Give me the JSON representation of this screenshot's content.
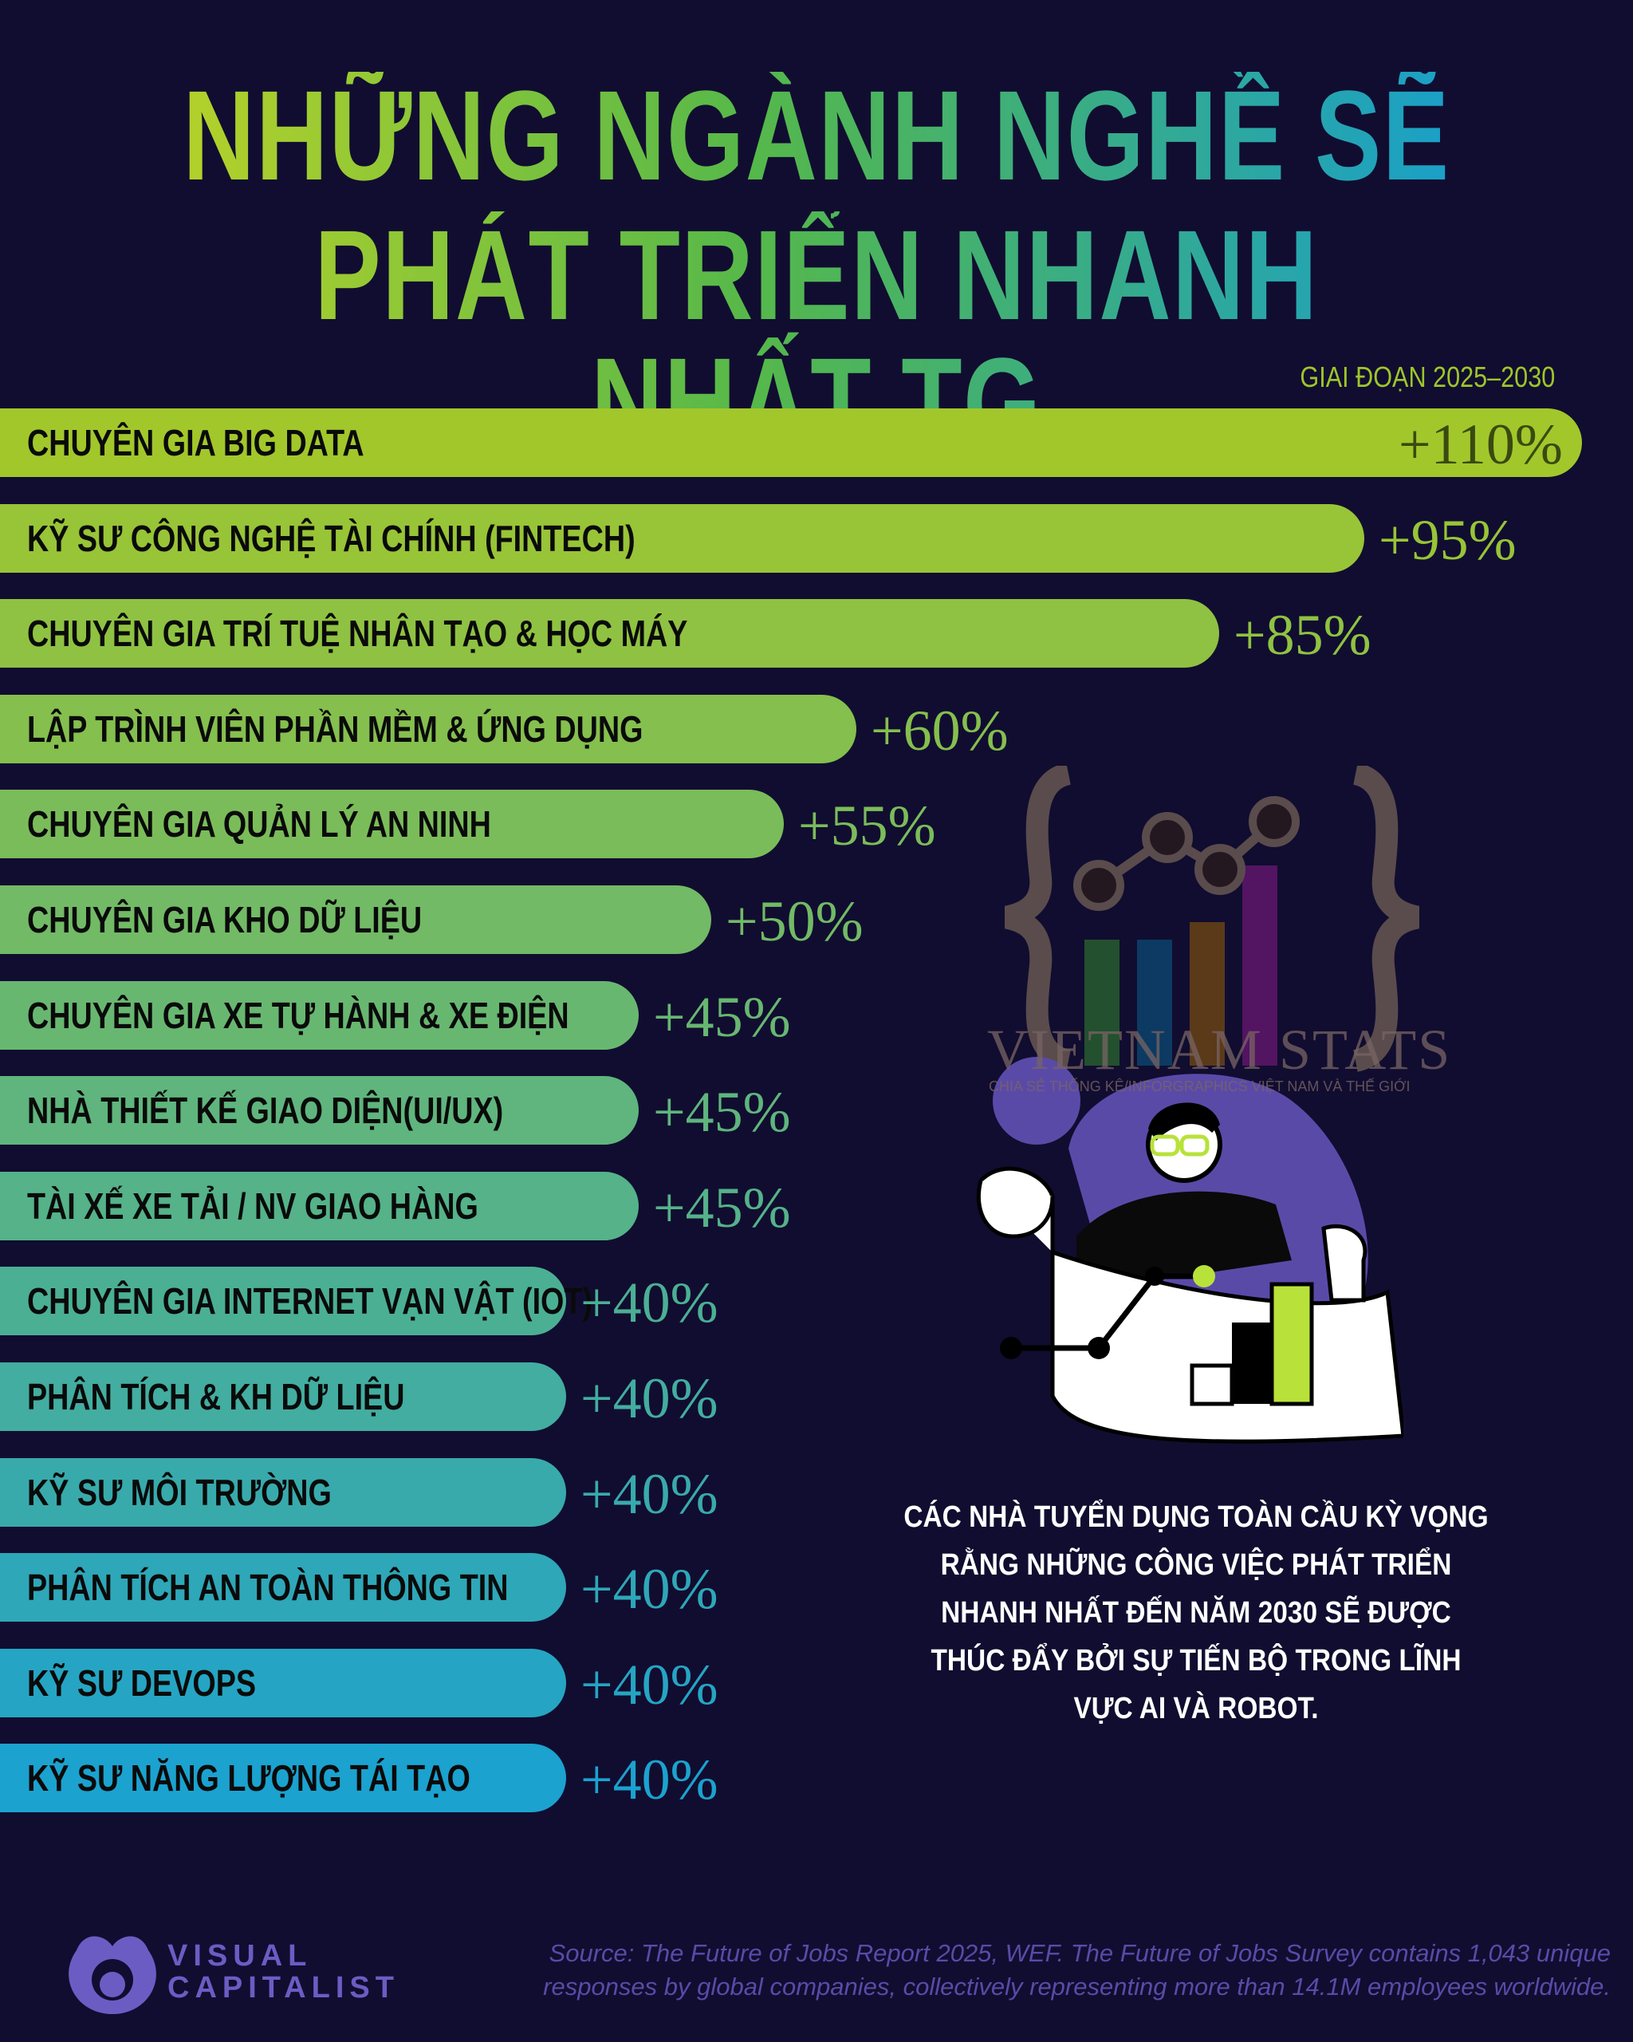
{
  "title": {
    "line1": "NHỮNG NGÀNH NGHỀ SẼ",
    "line2": "PHÁT TRIỂN NHANH NHẤT TG"
  },
  "period": "GIAI ĐOẠN 2025–2030",
  "chart_data": {
    "type": "bar",
    "orientation": "horizontal",
    "title": "NHỮNG NGÀNH NGHỀ SẼ PHÁT TRIỂN NHANH NHẤT TG",
    "subtitle": "GIAI ĐOẠN 2025–2030",
    "categories": [
      "CHUYÊN GIA BIG DATA",
      "KỸ SƯ CÔNG NGHỆ TÀI CHÍNH (FINTECH)",
      "CHUYÊN GIA TRÍ TUỆ NHÂN TẠO & HỌC MÁY",
      "LẬP TRÌNH VIÊN PHẦN MỀM & ỨNG DỤNG",
      "CHUYÊN GIA QUẢN LÝ AN NINH",
      "CHUYÊN GIA KHO DỮ LIỆU",
      "CHUYÊN GIA XE TỰ HÀNH & XE ĐIỆN",
      "NHÀ THIẾT KẾ GIAO DIỆN(UI/UX)",
      "TÀI XẾ XE TẢI / NV GIAO HÀNG",
      "CHUYÊN GIA INTERNET VẠN VẬT (IOT)",
      "PHÂN TÍCH & KH DỮ LIỆU",
      "KỸ SƯ MÔI TRƯỜNG",
      "PHÂN TÍCH AN TOÀN THÔNG TIN",
      "KỸ SƯ DEVOPS",
      "KỸ SƯ NĂNG LƯỢNG TÁI TẠO"
    ],
    "values": [
      110,
      95,
      85,
      60,
      55,
      50,
      45,
      45,
      45,
      40,
      40,
      40,
      40,
      40,
      40
    ],
    "value_labels": [
      "+110%",
      "+95%",
      "+85%",
      "+60%",
      "+55%",
      "+50%",
      "+45%",
      "+45%",
      "+45%",
      "+40%",
      "+40%",
      "+40%",
      "+40%",
      "+40%",
      "+40%"
    ],
    "colors": {
      "top": "#a2c72b",
      "bottom": "#1ba2cf"
    },
    "grid": false
  },
  "blurb": "CÁC NHÀ TUYỂN DỤNG TOÀN CẦU KỲ VỌNG RẰNG NHỮNG CÔNG VIỆC PHÁT TRIỂN NHANH NHẤT ĐẾN NĂM 2030 SẼ ĐƯỢC THÚC ĐẨY BỞI SỰ TIẾN BỘ TRONG LĨNH VỰC AI VÀ ROBOT.",
  "watermark": {
    "name": "VIETNAM STATS",
    "tagline": "CHIA SẺ THỐNG KÊ/INFORGRAPHICS VIỆT NAM VÀ THẾ GIỚI"
  },
  "footer": {
    "brand_line1": "VISUAL",
    "brand_line2": "CAPITALIST",
    "source": "Source: The Future of Jobs Report 2025, WEF. The Future of Jobs Survey contains 1,043 unique responses by global companies, collectively representing more than 14.1M employees worldwide."
  },
  "colors": {
    "background": "#110d30",
    "accent": "#9ec62a",
    "blob": "#5a4aa8"
  }
}
